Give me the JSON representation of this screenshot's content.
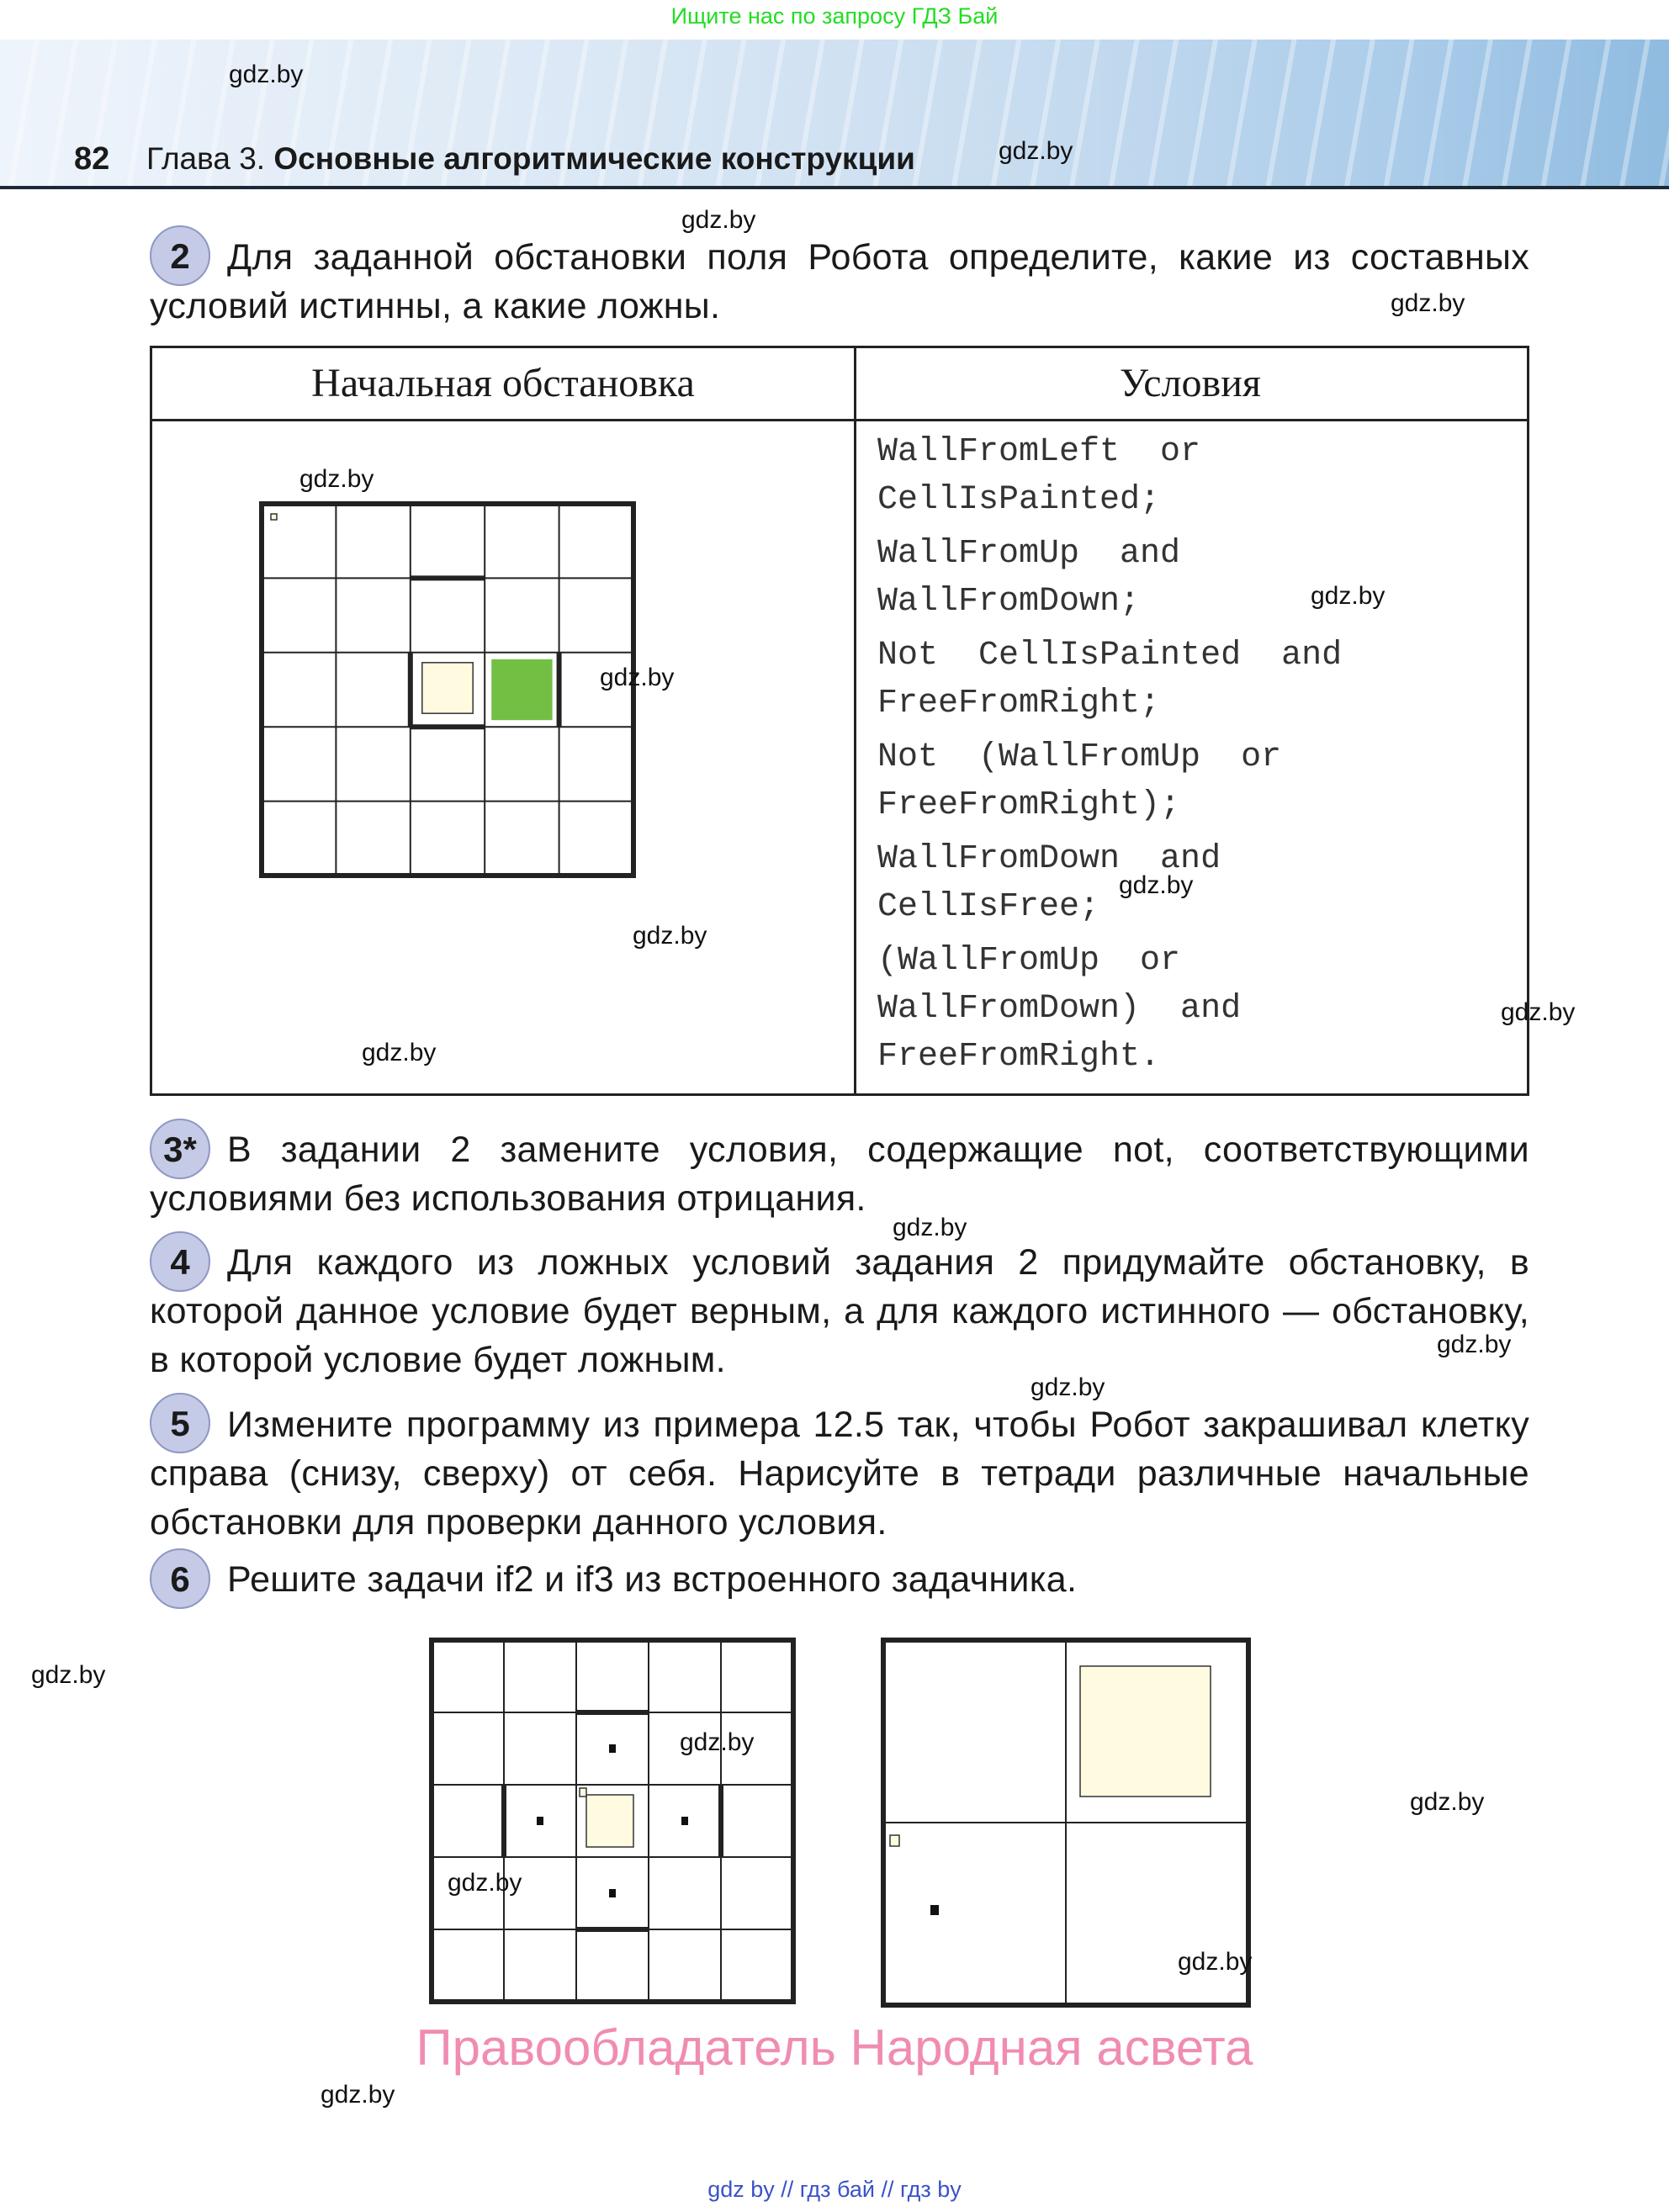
{
  "top_note": "Ищите нас по запросу ГДЗ Бай",
  "header": {
    "page_number": "82",
    "chapter_prefix": "Глава 3.",
    "chapter_title": "Основные алгоритмические конструкции"
  },
  "tasks": [
    {
      "number": "2",
      "text": "Для заданной обстановки поля Робота определите, какие из составных условий истинны, а какие ложны."
    },
    {
      "number": "3*",
      "text": "В задании 2 замените условия, содержащие not, соответствующими условиями без использования отрицания."
    },
    {
      "number": "4",
      "text": "Для каждого из ложных условий задания 2 придумайте обстановку, в которой данное условие будет верным, а для каждого истинного — обстановку, в которой условие будет ложным."
    },
    {
      "number": "5",
      "text": "Измените программу из примера 12.5 так, чтобы Робот закрашивал клетку справа (снизу, сверху) от себя. Нарисуйте в тетради различные начальные обстановки для проверки данного условия."
    },
    {
      "number": "6",
      "text": "Решите задачи if2 и if3 из встроенного задачника."
    }
  ],
  "table": {
    "col1_header": "Начальная обстановка",
    "col2_header": "Условия",
    "conditions": [
      "WallFromLeft  or\nCellIsPainted;",
      "WallFromUp  and\nWallFromDown;",
      "Not  CellIsPainted  and\nFreeFromRight;",
      "Not  (WallFromUp  or\nFreeFromRight);",
      "WallFromDown  and\nCellIsFree;",
      "(WallFromUp  or\nWallFromDown)  and\nFreeFromRight."
    ]
  },
  "colors": {
    "painted": "#72bf44",
    "robot_cell": "#fefbe0",
    "pink": "#f08cb2",
    "footer": "#3a52c8",
    "top_note": "#22dd22"
  },
  "copyright": "Правообладатель Народная асвета",
  "footer": "gdz by  //  гдз бай  //  гдз by",
  "watermarks": [
    "gdz.by",
    "gdz.by",
    "gdz.by",
    "gdz.by",
    "gdz.by",
    "gdz.by",
    "gdz.by",
    "gdz.by",
    "gdz.by",
    "gdz.by",
    "gdz.by",
    "gdz.by",
    "gdz.by",
    "gdz.by",
    "gdz.by",
    "gdz.by",
    "gdz.by",
    "gdz.by",
    "gdz.by",
    "gdz.by"
  ]
}
